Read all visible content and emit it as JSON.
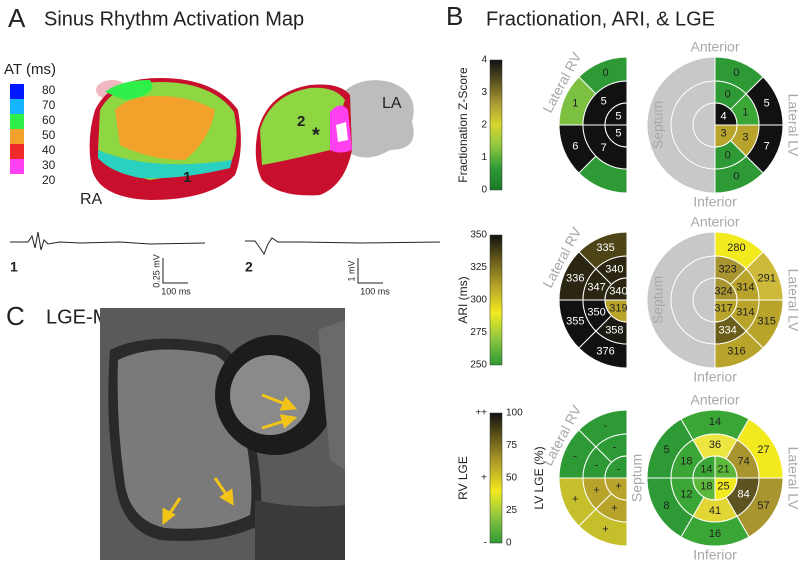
{
  "panel_a": {
    "letter": "A",
    "title": "Sinus Rhythm Activation Map",
    "legend": {
      "title": "AT (ms)",
      "ticks": [
        80,
        70,
        60,
        50,
        40,
        30,
        20
      ],
      "colors": [
        "#0018ff",
        "#14b4ff",
        "#2ff04a",
        "#f2a12a",
        "#ef2a2a",
        "#ff40f0",
        "#ffffff"
      ]
    },
    "labels": {
      "ra": "RA",
      "la": "LA",
      "site1": "1",
      "site2": "2",
      "star": "*"
    },
    "traces": [
      {
        "label": "1",
        "scale_v": "0.25 mV",
        "scale_t": "100 ms"
      },
      {
        "label": "2",
        "scale_v": "1 mV",
        "scale_t": "100 ms"
      }
    ]
  },
  "panel_b": {
    "letter": "B",
    "title": "Fractionation, ARI, & LGE",
    "rows": [
      {
        "colorbar": {
          "title": "Fractionation Z-Score",
          "ticks": [
            4,
            3,
            2,
            1,
            0
          ],
          "colors": [
            "#111111",
            "#5c5320",
            "#a89a35",
            "#d7d530",
            "#8cc63f",
            "#2e9a35",
            "#1b7a28"
          ]
        },
        "rv": {
          "orientation": "Lateral RV",
          "rings": {
            "outer": [
              {
                "color": "#2e9a35",
                "label": 0
              },
              {
                "color": "#7cc142",
                "label": 1
              },
              {
                "color": "#111111",
                "label": 6
              },
              {
                "color": "#2e9a35"
              }
            ],
            "middle": [
              {
                "color": "#111111",
                "label": 5
              },
              {
                "color": "#111111",
                "label": 7
              }
            ],
            "inner": [
              {
                "color": "#111111",
                "label": 5
              },
              {
                "color": "#111111",
                "label": 5
              }
            ]
          }
        },
        "lv": {
          "layout": "half",
          "top": "Anterior",
          "bottom": "Inferior",
          "left": "Septum",
          "right": "Lateral LV",
          "rings": {
            "outer": [
              {
                "color": "#2e9a35",
                "label": 0
              },
              {
                "color": "#111111",
                "label": 5
              },
              {
                "color": "#111111",
                "label": 7
              },
              {
                "color": "#2e9a35",
                "label": 0
              }
            ],
            "middle": [
              {
                "color": "#2e9a35",
                "label": 0
              },
              {
                "color": "#3aa635",
                "label": 1
              },
              {
                "color": "#b8a42a",
                "label": 3
              },
              {
                "color": "#2e9a35",
                "label": 0
              }
            ],
            "inner": [
              {
                "color": "#111111",
                "label": 4
              },
              {
                "color": "#b8a42a",
                "label": 3
              }
            ]
          }
        }
      },
      {
        "colorbar": {
          "title": "ARI (ms)",
          "ticks": [
            350,
            325,
            300,
            275,
            250
          ],
          "colors": [
            "#111111",
            "#6b5e1a",
            "#b8a42a",
            "#f2ea1f",
            "#8cc63f",
            "#2e9a35"
          ]
        },
        "rv": {
          "orientation": "Lateral RV",
          "rings": {
            "outer": [
              {
                "color": "#4d4418",
                "label": 335
              },
              {
                "color": "#2a2612",
                "label": 336
              },
              {
                "color": "#111111",
                "label": 355
              },
              {
                "color": "#111111",
                "label": 376
              }
            ],
            "middle": [
              {
                "color": "#2a2612",
                "label": 340
              },
              {
                "color": "#2a2612",
                "label": 347
              },
              {
                "color": "#111111",
                "label": 350
              },
              {
                "color": "#1a1a10",
                "label": 358
              }
            ],
            "inner": [
              {
                "color": "#2a2612",
                "label": 340
              },
              {
                "color": "#b8a42a",
                "label": 319
              }
            ]
          }
        },
        "lv": {
          "layout": "half",
          "top": "Anterior",
          "bottom": "Inferior",
          "left": "Septum",
          "right": "Lateral LV",
          "rings": {
            "outer": [
              {
                "color": "#f2ea1f",
                "label": 280
              },
              {
                "color": "#cdb93a",
                "label": 291
              },
              {
                "color": "#b8a42a",
                "label": 315
              },
              {
                "color": "#b8a42a",
                "label": 316
              }
            ],
            "middle": [
              {
                "color": "#a89530",
                "label": 323
              },
              {
                "color": "#b8a42a",
                "label": 314
              },
              {
                "color": "#b8a42a",
                "label": 314
              },
              {
                "color": "#6b5e1a",
                "label": 334
              }
            ],
            "inner": [
              {
                "color": "#a89530",
                "label": 324
              },
              {
                "color": "#b8a42a",
                "label": 317
              }
            ]
          }
        }
      },
      {
        "colorbar": {
          "title": "RV LGE",
          "ticks": [
            "++",
            "+",
            "-"
          ],
          "right_title": "LV LGE (%)",
          "right_ticks": [
            100,
            75,
            50,
            25,
            0
          ],
          "colors": [
            "#111111",
            "#6b5e1a",
            "#b8a42a",
            "#f2ea1f",
            "#8cc63f",
            "#2e9a35"
          ]
        },
        "rv": {
          "orientation": "Lateral RV",
          "rings": {
            "outer": [
              {
                "color": "#2e9a35",
                "label": "-"
              },
              {
                "color": "#2e9a35",
                "label": "-"
              },
              {
                "color": "#c6bf2c",
                "label": "+"
              },
              {
                "color": "#c6bf2c",
                "label": "+"
              }
            ],
            "middle": [
              {
                "color": "#2e9a35",
                "label": "-"
              },
              {
                "color": "#2e9a35",
                "label": "-"
              },
              {
                "color": "#b8a42a",
                "label": "+"
              },
              {
                "color": "#b8a42a",
                "label": "+"
              }
            ],
            "inner": [
              {
                "color": "#2e9a35",
                "label": "-"
              },
              {
                "color": "#b8a42a",
                "label": "+"
              }
            ]
          }
        },
        "lv": {
          "layout": "full",
          "top": "Anterior",
          "bottom": "Inferior",
          "left": "Septum",
          "right": "Lateral LV",
          "rings": {
            "outer": [
              {
                "color": "#3aa635",
                "label": 14
              },
              {
                "color": "#f2ea1f",
                "label": 27
              },
              {
                "color": "#a89530",
                "label": 57
              },
              {
                "color": "#3aa635",
                "label": 16
              },
              {
                "color": "#2e9a35",
                "label": 8
              },
              {
                "color": "#2e9a35",
                "label": 5
              }
            ],
            "middle": [
              {
                "color": "#eee640",
                "label": 36
              },
              {
                "color": "#a89530",
                "label": 74
              },
              {
                "color": "#5c5320",
                "label": 84
              },
              {
                "color": "#e2d634",
                "label": 41
              },
              {
                "color": "#3aa635",
                "label": 12
              },
              {
                "color": "#3aa635",
                "label": 18
              }
            ],
            "inner": [
              {
                "color": "#3aa635",
                "label": 14
              },
              {
                "color": "#5cb83a",
                "label": 21
              },
              {
                "color": "#f2ea1f",
                "label": 25
              },
              {
                "color": "#5cb83a",
                "label": 18
              }
            ]
          }
        }
      }
    ]
  },
  "panel_c": {
    "letter": "C",
    "title": "LGE-MRI"
  }
}
